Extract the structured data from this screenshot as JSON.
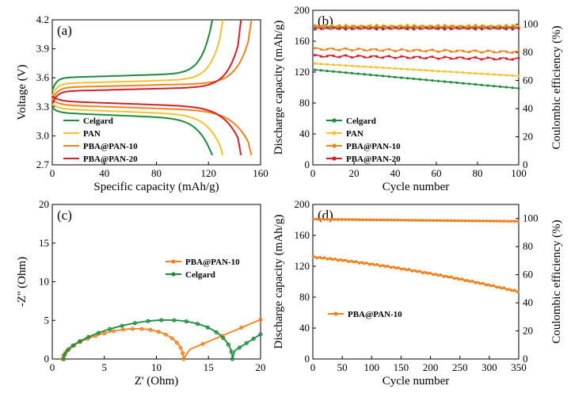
{
  "colors": {
    "celgard": "#1e8a3c",
    "pan": "#f2c230",
    "pba10": "#f0821e",
    "pba20": "#d2202a"
  },
  "chart_data": [
    {
      "panel": "(a)",
      "type": "line",
      "xlabel": "Specific capacity (mAh/g)",
      "ylabel": "Voltage (V)",
      "xlim": [
        0,
        160
      ],
      "ylim": [
        2.7,
        4.2
      ],
      "xticks": [
        0,
        40,
        80,
        120,
        160
      ],
      "yticks": [
        2.7,
        3.0,
        3.3,
        3.6,
        3.9,
        4.2
      ],
      "legend_position": "bottom-left",
      "series": [
        {
          "name": "Celgard",
          "color": "#1e8a3c",
          "capacity": 123,
          "v_charge": 3.6,
          "v_discharge": 3.24
        },
        {
          "name": "PAN",
          "color": "#f2c230",
          "capacity": 131,
          "v_charge": 3.54,
          "v_discharge": 3.28
        },
        {
          "name": "PBA@PAN-10",
          "color": "#f0821e",
          "capacity": 153,
          "v_charge": 3.5,
          "v_discharge": 3.32
        },
        {
          "name": "PBA@PAN-20",
          "color": "#d2202a",
          "capacity": 145,
          "v_charge": 3.46,
          "v_discharge": 3.36
        }
      ]
    },
    {
      "panel": "(b)",
      "type": "scatter",
      "xlabel": "Cycle number",
      "ylabel": "Discharge capacity (mAh/g)",
      "y2label": "Coulombic efficiency (%)",
      "xlim": [
        0,
        100
      ],
      "ylim": [
        0,
        200
      ],
      "y2lim": [
        0,
        110
      ],
      "xticks": [
        0,
        20,
        40,
        60,
        80,
        100
      ],
      "yticks": [
        0,
        40,
        80,
        120,
        160,
        200
      ],
      "y2ticks": [
        0,
        20,
        40,
        60,
        80,
        100
      ],
      "legend_position": "bottom-left",
      "series": [
        {
          "name": "Celgard",
          "color": "#1e8a3c",
          "capacity_start": 123,
          "capacity_end": 99,
          "efficiency": 98
        },
        {
          "name": "PAN",
          "color": "#f2c230",
          "capacity_start": 131,
          "capacity_end": 115,
          "efficiency": 99
        },
        {
          "name": "PBA@PAN-10",
          "color": "#f0821e",
          "capacity_start": 150,
          "capacity_end": 146,
          "efficiency": 98.5
        },
        {
          "name": "PBA@PAN-20",
          "color": "#d2202a",
          "capacity_start": 141,
          "capacity_end": 137,
          "efficiency": 97
        }
      ]
    },
    {
      "panel": "(c)",
      "type": "line",
      "xlabel": "Z' (Ohm)",
      "ylabel": "-Z'' (Ohm)",
      "xlim": [
        0,
        20
      ],
      "ylim": [
        0,
        20
      ],
      "xticks": [
        0,
        5,
        10,
        15,
        20
      ],
      "yticks": [
        0,
        5,
        10,
        15,
        20
      ],
      "legend_position": "right",
      "series": [
        {
          "name": "PBA@PAN-10",
          "color": "#f0821e",
          "r0": 1.0,
          "semicircle_end": 12.6,
          "peak": 3.8,
          "tail_end": [
            20,
            5.1
          ]
        },
        {
          "name": "Celgard",
          "color": "#1e8a3c",
          "r0": 1.1,
          "semicircle_end": 17.3,
          "peak": 4.9,
          "tail_end": [
            20,
            3.2
          ]
        }
      ]
    },
    {
      "panel": "(d)",
      "type": "scatter",
      "xlabel": "Cycle number",
      "ylabel": "Discharge capacity (mAh/g)",
      "y2label": "Coulombic efficiency (%)",
      "xlim": [
        0,
        350
      ],
      "ylim": [
        0,
        200
      ],
      "y2lim": [
        0,
        110
      ],
      "xticks": [
        0,
        50,
        100,
        150,
        200,
        250,
        300,
        350
      ],
      "yticks": [
        0,
        40,
        80,
        120,
        160,
        200
      ],
      "y2ticks": [
        0,
        20,
        40,
        60,
        80,
        100
      ],
      "legend_position": "left",
      "series": [
        {
          "name": "PBA@PAN-10",
          "color": "#f0821e",
          "capacity_start": 132,
          "capacity_end": 87,
          "efficiency_start": 99.5,
          "efficiency_end": 98
        }
      ]
    }
  ]
}
